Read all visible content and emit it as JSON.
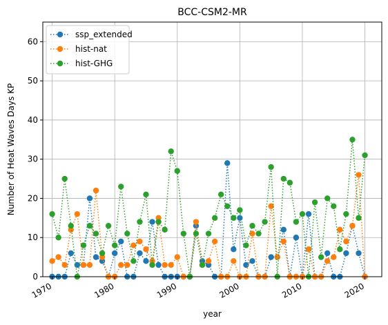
{
  "chart_data": {
    "type": "line",
    "title": "BCC-CSM2-MR",
    "xlabel": "year",
    "ylabel": "Number of Heat Waves Days KP",
    "xlim": [
      1968.5,
      2022.7
    ],
    "ylim": [
      0,
      65
    ],
    "grid": true,
    "legend_position": "top-left",
    "x_ticks": [
      {
        "value": 1970,
        "label": "1970"
      },
      {
        "value": 1980,
        "label": "1980"
      },
      {
        "value": 1990,
        "label": "1990"
      },
      {
        "value": 2000,
        "label": "2000"
      },
      {
        "value": 2010,
        "label": "2010"
      },
      {
        "value": 2020,
        "label": "2020"
      }
    ],
    "y_ticks": [
      {
        "value": 0,
        "label": "0"
      },
      {
        "value": 10,
        "label": "10"
      },
      {
        "value": 20,
        "label": "20"
      },
      {
        "value": 30,
        "label": "30"
      },
      {
        "value": 40,
        "label": "40"
      },
      {
        "value": 50,
        "label": "50"
      },
      {
        "value": 60,
        "label": "60"
      }
    ],
    "x": [
      1970,
      1971,
      1972,
      1973,
      1974,
      1975,
      1976,
      1977,
      1978,
      1979,
      1980,
      1981,
      1982,
      1983,
      1984,
      1985,
      1986,
      1987,
      1988,
      1989,
      1990,
      1991,
      1992,
      1993,
      1994,
      1995,
      1996,
      1997,
      1998,
      1999,
      2000,
      2001,
      2002,
      2003,
      2004,
      2005,
      2006,
      2007,
      2008,
      2009,
      2010,
      2011,
      2012,
      2013,
      2014,
      2015,
      2016,
      2017,
      2018,
      2019,
      2020
    ],
    "series": [
      {
        "name": "ssp_extended",
        "color": "#1f77b4",
        "values": [
          0,
          0,
          0,
          6,
          3,
          3,
          20,
          5,
          4,
          0,
          6,
          9,
          0,
          0,
          6,
          4,
          14,
          3,
          0,
          0,
          0,
          0,
          0,
          13,
          4,
          3,
          0,
          0,
          29,
          7,
          15,
          3,
          4,
          0,
          0,
          5,
          5,
          12,
          0,
          10,
          0,
          16,
          0,
          0,
          6,
          0,
          0,
          6,
          13,
          6,
          0
        ]
      },
      {
        "name": "hist-nat",
        "color": "#ff7f0e",
        "values": [
          4,
          5,
          3,
          12,
          16,
          3,
          3,
          22,
          5,
          0,
          0,
          3,
          3,
          8,
          9,
          7,
          4,
          15,
          3,
          3,
          5,
          0,
          0,
          14,
          3,
          4,
          9,
          0,
          0,
          4,
          0,
          0,
          11,
          0,
          0,
          18,
          5,
          9,
          0,
          0,
          0,
          7,
          0,
          0,
          4,
          5,
          12,
          9,
          13,
          26,
          0
        ]
      },
      {
        "name": "hist-GHG",
        "color": "#2ca02c",
        "values": [
          16,
          10,
          25,
          13,
          0,
          8,
          13,
          11,
          6,
          13,
          8,
          23,
          11,
          4,
          14,
          21,
          3,
          14,
          12,
          32,
          27,
          11,
          0,
          11,
          3,
          11,
          15,
          21,
          18,
          15,
          17,
          8,
          13,
          11,
          14,
          28,
          0,
          25,
          24,
          14,
          16,
          0,
          19,
          5,
          20,
          18,
          7,
          16,
          35,
          15,
          31
        ]
      }
    ]
  }
}
